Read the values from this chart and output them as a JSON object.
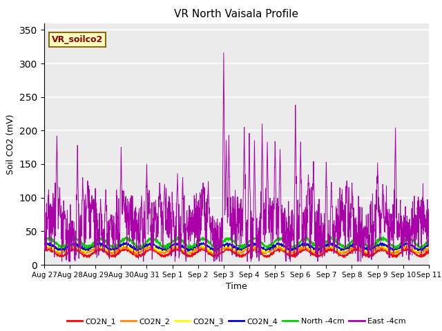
{
  "title": "VR North Vaisala Profile",
  "xlabel": "Time",
  "ylabel": "Soil CO2 (mV)",
  "annotation": "VR_soilco2",
  "ylim": [
    0,
    360
  ],
  "yticks": [
    0,
    50,
    100,
    150,
    200,
    250,
    300,
    350
  ],
  "series_colors": {
    "CO2N_1": "#FF0000",
    "CO2N_2": "#FF8800",
    "CO2N_3": "#FFFF00",
    "CO2N_4": "#0000CC",
    "North -4cm": "#00CC00",
    "East -4cm": "#AA00AA"
  },
  "xtick_labels": [
    "Aug 27",
    "Aug 28",
    "Aug 29",
    "Aug 30",
    "Aug 31",
    "Sep 1",
    "Sep 2",
    "Sep 3",
    "Sep 4",
    "Sep 5",
    "Sep 6",
    "Sep 7",
    "Sep 8",
    "Sep 9",
    "Sep 10",
    "Sep 11"
  ],
  "n_points": 2000,
  "bg_color": "#E8E8E8",
  "plot_bg": "#EBEBEB"
}
